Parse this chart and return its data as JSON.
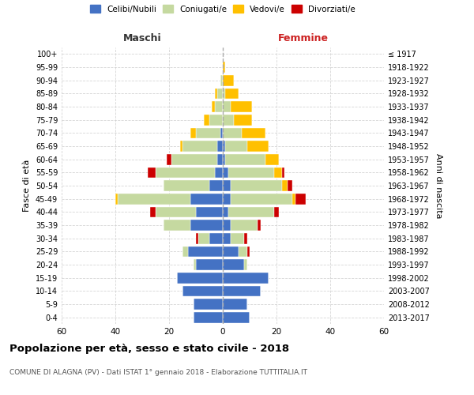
{
  "age_groups": [
    "0-4",
    "5-9",
    "10-14",
    "15-19",
    "20-24",
    "25-29",
    "30-34",
    "35-39",
    "40-44",
    "45-49",
    "50-54",
    "55-59",
    "60-64",
    "65-69",
    "70-74",
    "75-79",
    "80-84",
    "85-89",
    "90-94",
    "95-99",
    "100+"
  ],
  "birth_years": [
    "2013-2017",
    "2008-2012",
    "2003-2007",
    "1998-2002",
    "1993-1997",
    "1988-1992",
    "1983-1987",
    "1978-1982",
    "1973-1977",
    "1968-1972",
    "1963-1967",
    "1958-1962",
    "1953-1957",
    "1948-1952",
    "1943-1947",
    "1938-1942",
    "1933-1937",
    "1928-1932",
    "1923-1927",
    "1918-1922",
    "≤ 1917"
  ],
  "male": {
    "celibi": [
      11,
      11,
      15,
      17,
      10,
      13,
      5,
      12,
      10,
      12,
      5,
      3,
      2,
      2,
      1,
      0,
      0,
      0,
      0,
      0,
      0
    ],
    "coniugati": [
      0,
      0,
      0,
      0,
      1,
      2,
      4,
      10,
      15,
      27,
      17,
      22,
      17,
      13,
      9,
      5,
      3,
      2,
      1,
      0,
      0
    ],
    "vedovi": [
      0,
      0,
      0,
      0,
      0,
      0,
      0,
      0,
      0,
      1,
      0,
      0,
      0,
      1,
      2,
      2,
      1,
      1,
      0,
      0,
      0
    ],
    "divorziati": [
      0,
      0,
      0,
      0,
      0,
      0,
      1,
      0,
      2,
      0,
      0,
      3,
      2,
      0,
      0,
      0,
      0,
      0,
      0,
      0,
      0
    ]
  },
  "female": {
    "nubili": [
      10,
      9,
      14,
      17,
      8,
      6,
      3,
      3,
      2,
      3,
      3,
      2,
      1,
      1,
      0,
      0,
      0,
      0,
      0,
      0,
      0
    ],
    "coniugate": [
      0,
      0,
      0,
      0,
      1,
      3,
      5,
      10,
      17,
      23,
      19,
      17,
      15,
      8,
      7,
      4,
      3,
      1,
      0,
      0,
      0
    ],
    "vedove": [
      0,
      0,
      0,
      0,
      0,
      0,
      0,
      0,
      0,
      1,
      2,
      3,
      5,
      8,
      9,
      7,
      8,
      5,
      4,
      1,
      0
    ],
    "divorziate": [
      0,
      0,
      0,
      0,
      0,
      1,
      1,
      1,
      2,
      4,
      2,
      1,
      0,
      0,
      0,
      0,
      0,
      0,
      0,
      0,
      0
    ]
  },
  "colors": {
    "celibi": "#4472c4",
    "coniugati": "#c5d9a0",
    "vedovi": "#ffc000",
    "divorziati": "#cc0000"
  },
  "title": "Popolazione per età, sesso e stato civile - 2018",
  "subtitle": "COMUNE DI ALAGNA (PV) - Dati ISTAT 1° gennaio 2018 - Elaborazione TUTTITALIA.IT",
  "xlabel_left": "Maschi",
  "xlabel_right": "Femmine",
  "ylabel_left": "Fasce di età",
  "ylabel_right": "Anni di nascita",
  "xlim": 60,
  "legend_labels": [
    "Celibi/Nubili",
    "Coniugati/e",
    "Vedovi/e",
    "Divorziati/e"
  ],
  "background_color": "#ffffff",
  "grid_color": "#cccccc"
}
